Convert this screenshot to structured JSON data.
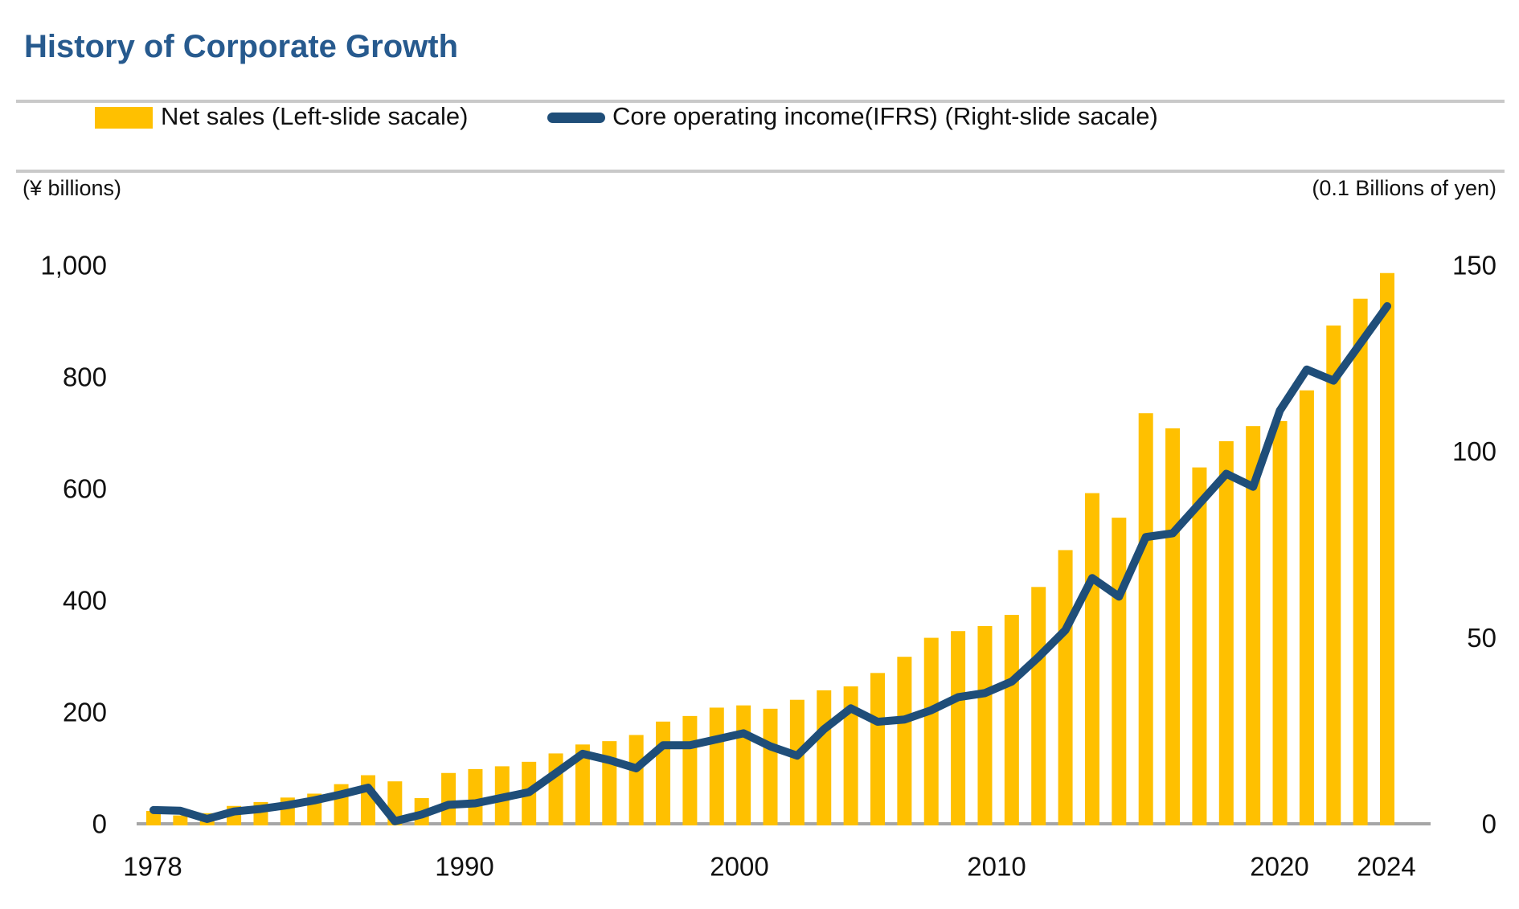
{
  "title": "History of Corporate Growth",
  "legend": {
    "net_sales": "Net sales (Left-slide sacale)",
    "core_operating_income": "Core operating income(IFRS) (Right-slide sacale)"
  },
  "axes": {
    "left_unit": "(¥ billions)",
    "right_unit": "(0.1 Billions of yen)",
    "left_tick_labels": [
      "1,000",
      "800",
      "600",
      "400",
      "200",
      "0"
    ],
    "left_tick_values": [
      1000,
      800,
      600,
      400,
      200,
      0
    ],
    "right_tick_labels": [
      "150",
      "100",
      "50",
      "0"
    ],
    "right_tick_values": [
      150,
      100,
      50,
      0
    ],
    "x_tick_labels": [
      "1978",
      "1990",
      "2000",
      "2010",
      "2020",
      "2024"
    ]
  },
  "colors": {
    "bar": "#FFC000",
    "line": "#1F4E79",
    "title": "#275A8E",
    "separator": "#C9C9C9",
    "axis_line": "#A6A6A6",
    "text": "#111111"
  },
  "chart_data": {
    "type": "bar+line combo",
    "title": "History of Corporate Growth",
    "x": [
      1978,
      1979,
      1980,
      1981,
      1982,
      1983,
      1984,
      1985,
      1986,
      1987,
      1988,
      1989,
      1990,
      1991,
      1992,
      1993,
      1994,
      1995,
      1996,
      1997,
      1998,
      1999,
      2000,
      2001,
      2002,
      2003,
      2004,
      2005,
      2006,
      2007,
      2008,
      2009,
      2010,
      2011,
      2012,
      2013,
      2014,
      2015,
      2016,
      2017,
      2018,
      2019,
      2020,
      2021,
      2022,
      2023,
      2024
    ],
    "series": [
      {
        "name": "Net sales (Left-slide sacale)",
        "type": "bar",
        "axis": "left",
        "unit": "¥ billions",
        "values": [
          23,
          15,
          19,
          32,
          39,
          47,
          54,
          71,
          87,
          76,
          46,
          91,
          98,
          103,
          111,
          126,
          142,
          148,
          159,
          183,
          193,
          208,
          212,
          206,
          222,
          239,
          246,
          270,
          299,
          333,
          345,
          354,
          374,
          424,
          490,
          592,
          548,
          735,
          708,
          638,
          685,
          712,
          721,
          776,
          892,
          940,
          986
        ]
      },
      {
        "name": "Core operating income(IFRS) (Right-slide sacale)",
        "type": "line",
        "axis": "right",
        "unit": "0.1 Billions of yen",
        "values": [
          3.7,
          3.5,
          1.3,
          3.3,
          4,
          5,
          6.3,
          7.9,
          9.7,
          0.7,
          2.5,
          5.1,
          5.5,
          7,
          8.5,
          13.6,
          18.8,
          17.1,
          14.9,
          21.1,
          21.1,
          22.7,
          24.3,
          20.8,
          18.3,
          25.4,
          31,
          27.4,
          28,
          30.5,
          34,
          35.1,
          38.2,
          44.8,
          52,
          66,
          61,
          77,
          78,
          86,
          94,
          90.5,
          111,
          122,
          119,
          129,
          139
        ]
      }
    ],
    "left_axis": {
      "label": "(¥ billions)",
      "range": [
        0,
        1000
      ],
      "ticks": [
        0,
        200,
        400,
        600,
        800,
        1000
      ]
    },
    "right_axis": {
      "label": "(0.1 Billions of yen)",
      "range": [
        0,
        150
      ],
      "ticks": [
        0,
        50,
        100,
        150
      ]
    },
    "x_axis": {
      "labeled_ticks": [
        1978,
        1990,
        2000,
        2010,
        2020,
        2024
      ]
    },
    "grid": false,
    "legend_position": "top"
  }
}
